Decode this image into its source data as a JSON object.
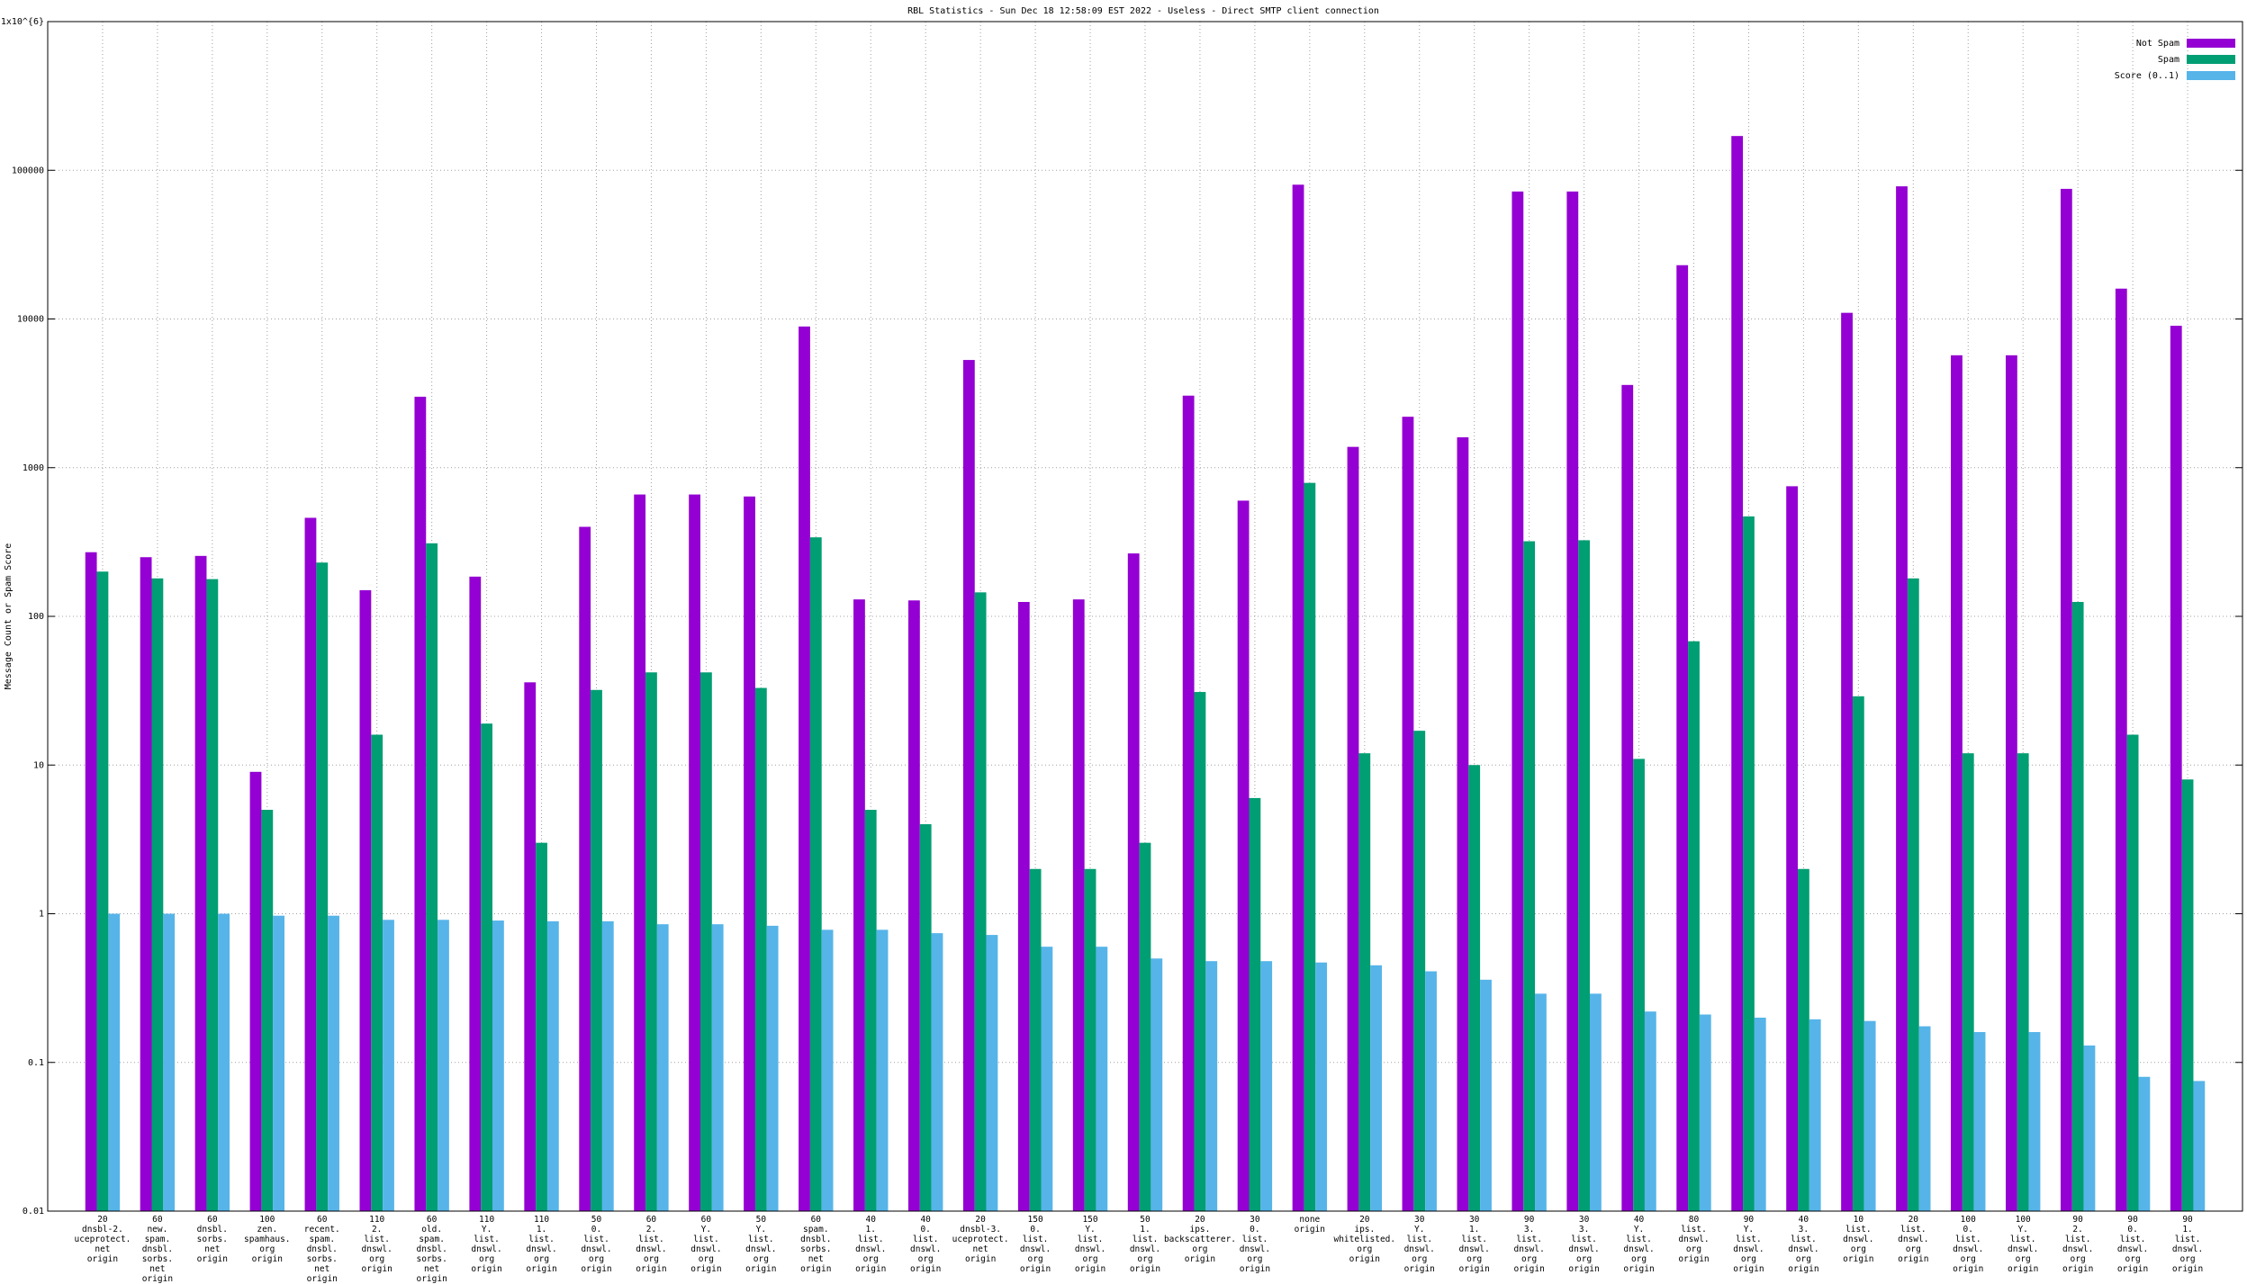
{
  "chart_data": {
    "type": "bar",
    "title": "RBL Statistics - Sun Dec 18 12:58:09 EST 2022 - Useless - Direct SMTP client connection",
    "y_label": "Message Count or Spam Score",
    "log_scale": true,
    "grid": true,
    "legend": "top-right",
    "categories": [
      "20\ndnsbl-2.\nuceprotect.\nnet\norigin",
      "60\nnew.\nspam.\ndnsbl.\nsorbs.\nnet\norigin",
      "60\ndnsbl.\nsorbs.\nnet\norigin",
      "100\nzen.\nspamhaus.\norg\norigin",
      "60\nrecent.\nspam.\ndnsbl.\nsorbs.\nnet\norigin",
      "110\n2.\nlist.\ndnswl.\norg\norigin",
      "60\nold.\nspam.\ndnsbl.\nsorbs.\nnet\norigin",
      "110\nY.\nlist.\ndnswl.\norg\norigin",
      "110\n1.\nlist.\ndnswl.\norg\norigin",
      "50\n0.\nlist.\ndnswl.\norg\norigin",
      "60\n2.\nlist.\ndnswl.\norg\norigin",
      "60\nY.\nlist.\ndnswl.\norg\norigin",
      "50\nY.\nlist.\ndnswl.\norg\norigin",
      "60\nspam.\ndnsbl.\nsorbs.\nnet\norigin",
      "40\n1.\nlist.\ndnswl.\norg\norigin",
      "40\n0.\nlist.\ndnswl.\norg\norigin",
      "20\ndnsbl-3.\nuceprotect.\nnet\norigin",
      "150\n0.\nlist.\ndnswl.\norg\norigin",
      "150\nY.\nlist.\ndnswl.\norg\norigin",
      "50\n1.\nlist.\ndnswl.\norg\norigin",
      "20\nips.\nbackscatterer.\norg\norigin",
      "30\n0.\nlist.\ndnswl.\norg\norigin",
      "none\norigin",
      "20\nips.\nwhitelisted.\norg\norigin",
      "30\nY.\nlist.\ndnswl.\norg\norigin",
      "30\n1.\nlist.\ndnswl.\norg\norigin",
      "90\n3.\nlist.\ndnswl.\norg\norigin",
      "30\n3.\nlist.\ndnswl.\norg\norigin",
      "40\nY.\nlist.\ndnswl.\norg\norigin",
      "80\nlist.\ndnswl.\norg\norigin",
      "90\nY.\nlist.\ndnswl.\norg\norigin",
      "40\n3.\nlist.\ndnswl.\norg\norigin",
      "10\nlist.\ndnswl.\norg\norigin",
      "20\nlist.\ndnswl.\norg\norigin",
      "100\n0.\nlist.\ndnswl.\norg\norigin",
      "100\nY.\nlist.\ndnswl.\norg\norigin",
      "90\n2.\nlist.\ndnswl.\norg\norigin",
      "90\n0.\nlist.\ndnswl.\norg\norigin",
      "90\n1.\nlist.\ndnswl.\norg\norigin"
    ],
    "series": [
      {
        "name": "Not Spam",
        "color": "#9400d3",
        "values": [
          270,
          250,
          255,
          9,
          460,
          150,
          3000,
          185,
          36,
          400,
          660,
          660,
          640,
          8900,
          130,
          128,
          5300,
          125,
          130,
          265,
          3050,
          600,
          80000,
          1380,
          2200,
          1600,
          72000,
          72000,
          3600,
          23000,
          170000,
          750,
          11000,
          78000,
          5700,
          5700,
          75000,
          16000,
          9000
        ]
      },
      {
        "name": "Spam",
        "color": "#009e73",
        "values": [
          200,
          180,
          178,
          5,
          230,
          16,
          310,
          19,
          3,
          32,
          42,
          42,
          33,
          340,
          5,
          4,
          145,
          2,
          2,
          3,
          31,
          6,
          790,
          12,
          17,
          10,
          320,
          325,
          11,
          68,
          470,
          2,
          29,
          180,
          12,
          12,
          125,
          16,
          8
        ]
      },
      {
        "name": "Score (0..1)",
        "color": "#56b4e9",
        "values": [
          1.0,
          1.0,
          1.0,
          0.97,
          0.97,
          0.91,
          0.91,
          0.9,
          0.89,
          0.89,
          0.85,
          0.85,
          0.83,
          0.78,
          0.78,
          0.74,
          0.72,
          0.6,
          0.6,
          0.5,
          0.48,
          0.48,
          0.47,
          0.45,
          0.41,
          0.36,
          0.29,
          0.29,
          0.22,
          0.21,
          0.2,
          0.195,
          0.19,
          0.175,
          0.16,
          0.16,
          0.13,
          0.08,
          0.075
        ]
      }
    ],
    "ylim": [
      0.01,
      1000000
    ],
    "yticks": [
      0.01,
      0.1,
      1,
      10,
      100,
      1000,
      10000,
      100000,
      {
        "value": 1000000,
        "label": "1x10^{6}"
      }
    ]
  }
}
